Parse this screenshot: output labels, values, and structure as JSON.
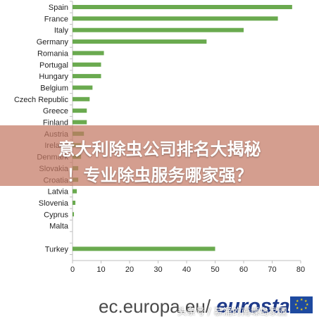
{
  "chart_data": {
    "type": "bar",
    "orientation": "horizontal",
    "categories": [
      "Spain",
      "France",
      "Italy",
      "Germany",
      "Romania",
      "Portugal",
      "Hungary",
      "Belgium",
      "Czech Republic",
      "Greece",
      "Finland",
      "Austria",
      "Ireland",
      "Denmark",
      "Slovakia",
      "Croatia",
      "Latvia",
      "Slovenia",
      "Cyprus",
      "Malta",
      "",
      "Turkey"
    ],
    "values": [
      77,
      72,
      60,
      47,
      11,
      10,
      10,
      7,
      6,
      5,
      5,
      4,
      3,
      3,
      2,
      2,
      1.5,
      1,
      0.5,
      0,
      null,
      50
    ],
    "xlim": [
      0,
      80
    ],
    "xticks": [
      "0",
      "10",
      "20",
      "30",
      "40",
      "50",
      "60",
      "70",
      "80"
    ],
    "grid": false,
    "colors": {
      "bar": "#6aaa4f",
      "axis": "#bfbfbf",
      "text": "#222222"
    }
  },
  "overlay": {
    "line1": "意大利除虫公司排名大揭秘",
    "line2": "！专业除虫服务哪家强？"
  },
  "footer": {
    "url": "ec.europa.eu/",
    "logo": "eurostat",
    "watermark": "头条号 / 慕涌的南嵊岛家园"
  }
}
